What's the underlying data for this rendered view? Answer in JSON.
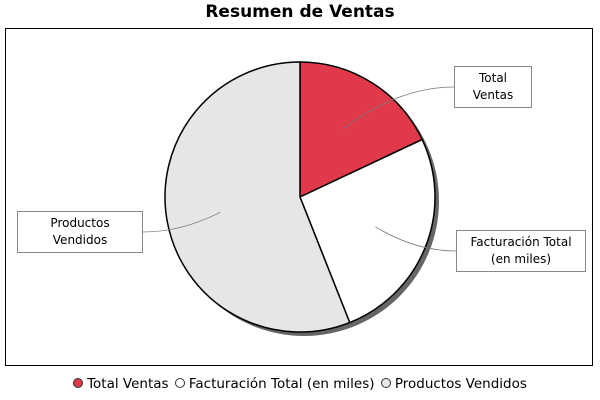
{
  "title": "Resumen de Ventas",
  "colors": {
    "total_ventas": "#e03a4a",
    "facturacion": "#ffffff",
    "productos": "#e6e6e6"
  },
  "chart_data": {
    "type": "pie",
    "title": "Resumen de Ventas",
    "categories": [
      "Total Ventas",
      "Facturación Total (en miles)",
      "Productos Vendidos"
    ],
    "values": [
      18,
      26,
      56
    ],
    "colors": [
      "#e03a4a",
      "#ffffff",
      "#e6e6e6"
    ],
    "legend_position": "bottom"
  },
  "callouts": {
    "total_ventas": "Total Ventas",
    "facturacion": "Facturación Total (en miles)",
    "productos": "Productos Vendidos"
  },
  "legend": [
    {
      "label": "Total Ventas",
      "color": "#e03a4a"
    },
    {
      "label": "Facturación Total (en miles)",
      "color": "#ffffff"
    },
    {
      "label": "Productos Vendidos",
      "color": "#e6e6e6"
    }
  ]
}
